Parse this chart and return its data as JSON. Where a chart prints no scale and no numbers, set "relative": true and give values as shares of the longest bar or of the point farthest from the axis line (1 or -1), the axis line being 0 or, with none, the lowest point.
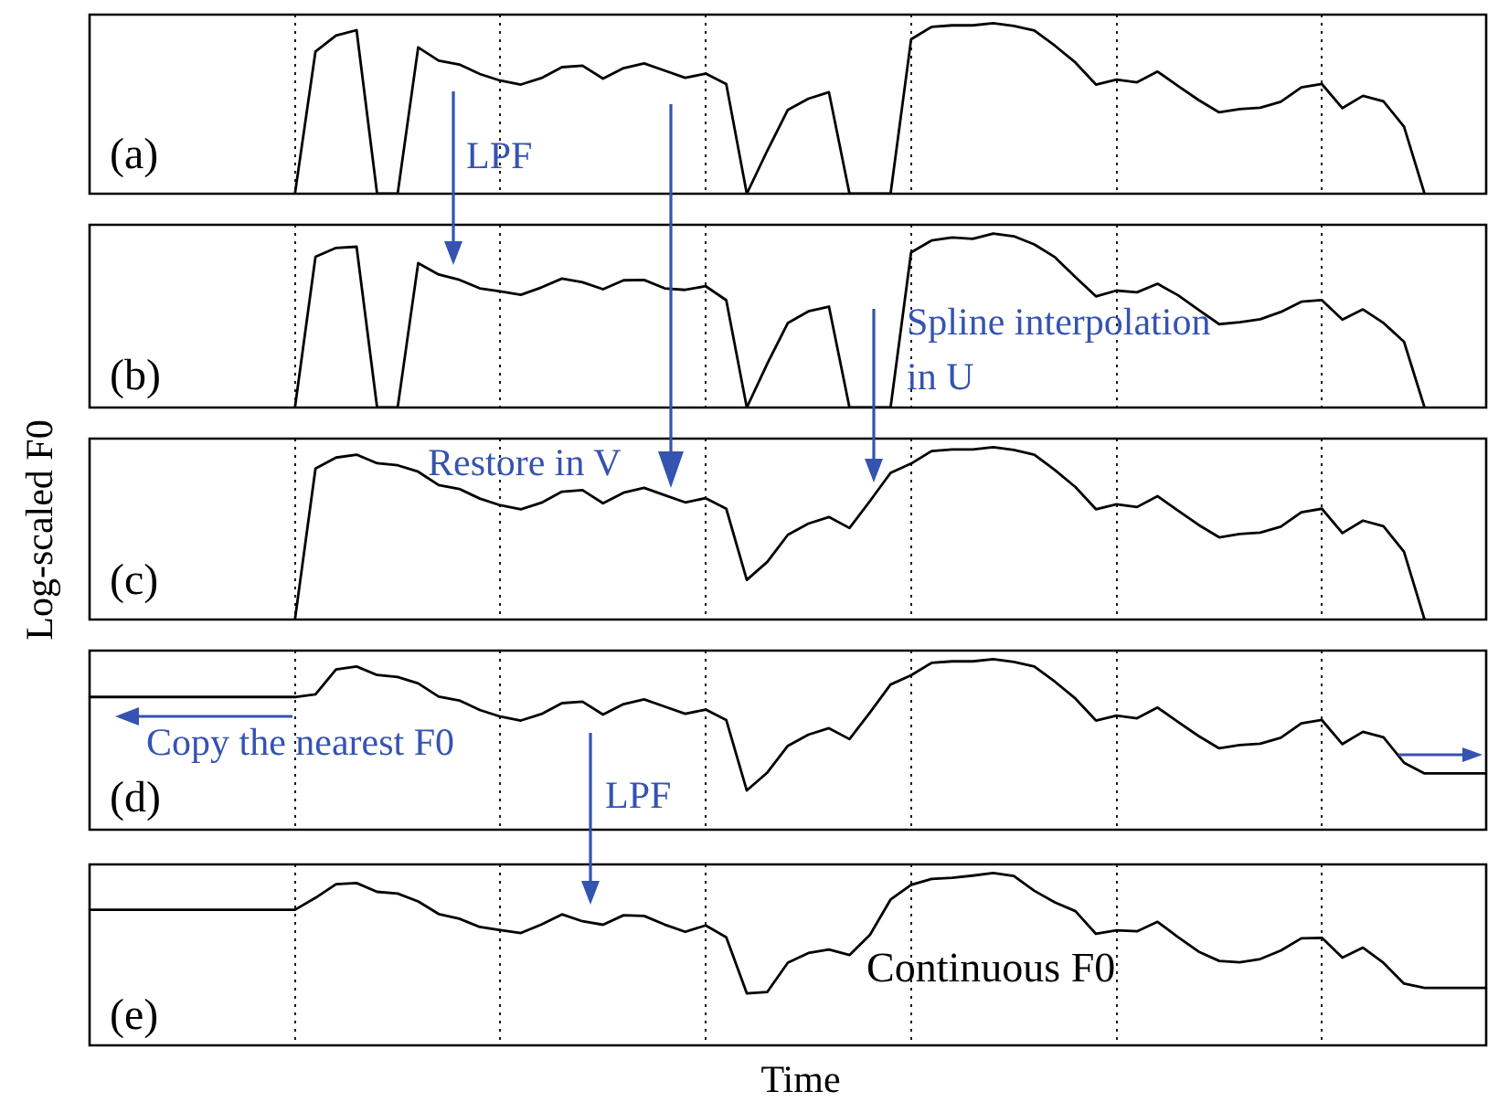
{
  "chart_data": [
    {
      "type": "line",
      "relative": true,
      "grid": "x",
      "marker": "none",
      "line_style": "solid",
      "annotations": [
        "(a)",
        "LPF"
      ],
      "categories": [
        null,
        null,
        null,
        null,
        null,
        null,
        null,
        null,
        null,
        null,
        null,
        null,
        null,
        null,
        null,
        null,
        null,
        null,
        null,
        null,
        null,
        null,
        null,
        null,
        null,
        null,
        null,
        null,
        null,
        null,
        null,
        null,
        null,
        null,
        null,
        null,
        null,
        null,
        null,
        null,
        null,
        null,
        null,
        null,
        null,
        null,
        null,
        null,
        null,
        null,
        null,
        null,
        null,
        null,
        null,
        null,
        null,
        null,
        null,
        null,
        null,
        null,
        null,
        null,
        null,
        null,
        null,
        null,
        null
      ],
      "series": [
        {
          "color": "#000000",
          "values": [
            null,
            null,
            null,
            null,
            null,
            null,
            null,
            null,
            null,
            null,
            0,
            0.834,
            0.927,
            0.959,
            0,
            0,
            0.858,
            0.78,
            0.758,
            0.702,
            0.663,
            0.64,
            0.678,
            0.742,
            0.751,
            0.675,
            0.736,
            0.764,
            0.722,
            0.68,
            0.704,
            0.643,
            0,
            0.253,
            0.492,
            0.557,
            0.595,
            0,
            0,
            0,
            0.905,
            0.978,
            0.987,
            0.987,
            1.0,
            0.984,
            0.957,
            0.868,
            0.769,
            0.64,
            0.669,
            0.653,
            0.716,
            0.632,
            0.549,
            0.477,
            0.496,
            0.504,
            0.539,
            0.623,
            0.643,
            0.502,
            0.574,
            0.542,
            0.393,
            0,
            null,
            null,
            null
          ]
        }
      ]
    },
    {
      "type": "line",
      "relative": true,
      "grid": "x",
      "marker": "none",
      "line_style": "solid",
      "annotations": [
        "(b)",
        "Spline interpolation in U"
      ],
      "categories": [
        null,
        null,
        null,
        null,
        null,
        null,
        null,
        null,
        null,
        null,
        null,
        null,
        null,
        null,
        null,
        null,
        null,
        null,
        null,
        null,
        null,
        null,
        null,
        null,
        null,
        null,
        null,
        null,
        null,
        null,
        null,
        null,
        null,
        null,
        null,
        null,
        null,
        null,
        null,
        null,
        null,
        null,
        null,
        null,
        null,
        null,
        null,
        null,
        null,
        null,
        null,
        null,
        null,
        null,
        null,
        null,
        null,
        null,
        null,
        null,
        null,
        null,
        null,
        null,
        null,
        null,
        null,
        null,
        null
      ],
      "series": [
        {
          "color": "#000000",
          "values": [
            null,
            null,
            null,
            null,
            null,
            null,
            null,
            null,
            null,
            null,
            0,
            0.866,
            0.917,
            0.924,
            0,
            0,
            0.83,
            0.764,
            0.734,
            0.685,
            0.667,
            0.648,
            0.69,
            0.741,
            0.72,
            0.68,
            0.731,
            0.733,
            0.685,
            0.676,
            0.697,
            0.617,
            0,
            0.253,
            0.486,
            0.553,
            0.58,
            0,
            0,
            0,
            0.891,
            0.96,
            0.977,
            0.969,
            1.0,
            0.984,
            0.937,
            0.864,
            0.75,
            0.639,
            0.672,
            0.662,
            0.711,
            0.645,
            0.561,
            0.479,
            0.49,
            0.507,
            0.549,
            0.608,
            0.617,
            0.505,
            0.564,
            0.486,
            0.378,
            0,
            null,
            null,
            null
          ]
        }
      ]
    },
    {
      "type": "line",
      "relative": true,
      "grid": "x",
      "marker": "none",
      "line_style": "solid",
      "ylabel": "Log-scaled F0",
      "annotations": [
        "(c)",
        "Restore in V"
      ],
      "categories": [
        null,
        null,
        null,
        null,
        null,
        null,
        null,
        null,
        null,
        null,
        null,
        null,
        null,
        null,
        null,
        null,
        null,
        null,
        null,
        null,
        null,
        null,
        null,
        null,
        null,
        null,
        null,
        null,
        null,
        null,
        null,
        null,
        null,
        null,
        null,
        null,
        null,
        null,
        null,
        null,
        null,
        null,
        null,
        null,
        null,
        null,
        null,
        null,
        null,
        null,
        null,
        null,
        null,
        null,
        null,
        null,
        null,
        null,
        null,
        null,
        null,
        null,
        null,
        null,
        null,
        null,
        null,
        null,
        null
      ],
      "series": [
        {
          "color": "#000000",
          "values": [
            null,
            null,
            null,
            null,
            null,
            null,
            null,
            null,
            null,
            null,
            0,
            0.876,
            0.94,
            0.957,
            0.907,
            0.895,
            0.858,
            0.78,
            0.758,
            0.702,
            0.663,
            0.64,
            0.678,
            0.742,
            0.751,
            0.675,
            0.736,
            0.764,
            0.722,
            0.68,
            0.704,
            0.643,
            0.23,
            0.335,
            0.492,
            0.557,
            0.595,
            0.531,
            0.688,
            0.851,
            0.905,
            0.978,
            0.987,
            0.987,
            1.0,
            0.984,
            0.957,
            0.868,
            0.769,
            0.64,
            0.669,
            0.653,
            0.716,
            0.632,
            0.549,
            0.477,
            0.496,
            0.504,
            0.539,
            0.623,
            0.643,
            0.502,
            0.574,
            0.542,
            0.393,
            0,
            null,
            null,
            null
          ]
        }
      ]
    },
    {
      "type": "line",
      "relative": true,
      "grid": "x",
      "marker": "none",
      "line_style": "solid",
      "annotations": [
        "(d)",
        "Copy the nearest F0",
        "LPF"
      ],
      "categories": [
        null,
        null,
        null,
        null,
        null,
        null,
        null,
        null,
        null,
        null,
        null,
        null,
        null,
        null,
        null,
        null,
        null,
        null,
        null,
        null,
        null,
        null,
        null,
        null,
        null,
        null,
        null,
        null,
        null,
        null,
        null,
        null,
        null,
        null,
        null,
        null,
        null,
        null,
        null,
        null,
        null,
        null,
        null,
        null,
        null,
        null,
        null,
        null,
        null,
        null,
        null,
        null,
        null,
        null,
        null,
        null,
        null,
        null,
        null,
        null,
        null,
        null,
        null,
        null,
        null,
        null,
        null,
        null,
        null
      ],
      "series": [
        {
          "color": "#000000",
          "values": [
            0.778,
            0.778,
            0.778,
            0.778,
            0.778,
            0.778,
            0.778,
            0.778,
            0.778,
            0.778,
            0.778,
            0.793,
            0.94,
            0.957,
            0.907,
            0.895,
            0.858,
            0.78,
            0.758,
            0.702,
            0.663,
            0.64,
            0.678,
            0.742,
            0.751,
            0.675,
            0.736,
            0.764,
            0.722,
            0.68,
            0.704,
            0.643,
            0.23,
            0.335,
            0.492,
            0.557,
            0.595,
            0.531,
            0.688,
            0.851,
            0.905,
            0.978,
            0.987,
            0.987,
            1.0,
            0.984,
            0.957,
            0.868,
            0.769,
            0.64,
            0.669,
            0.653,
            0.716,
            0.632,
            0.549,
            0.477,
            0.496,
            0.504,
            0.539,
            0.623,
            0.643,
            0.502,
            0.574,
            0.542,
            0.393,
            0.33,
            0.33,
            0.33,
            0.33
          ]
        }
      ]
    },
    {
      "type": "line",
      "relative": true,
      "grid": "x",
      "marker": "none",
      "line_style": "solid",
      "xlabel": "Time",
      "annotations": [
        "(e)",
        "Continuous F0"
      ],
      "categories": [
        null,
        null,
        null,
        null,
        null,
        null,
        null,
        null,
        null,
        null,
        null,
        null,
        null,
        null,
        null,
        null,
        null,
        null,
        null,
        null,
        null,
        null,
        null,
        null,
        null,
        null,
        null,
        null,
        null,
        null,
        null,
        null,
        null,
        null,
        null,
        null,
        null,
        null,
        null,
        null,
        null,
        null,
        null,
        null,
        null,
        null,
        null,
        null,
        null,
        null,
        null,
        null,
        null,
        null,
        null,
        null,
        null,
        null,
        null,
        null,
        null,
        null,
        null,
        null,
        null,
        null,
        null,
        null,
        null
      ],
      "series": [
        {
          "color": "#000000",
          "values": [
            0.787,
            0.787,
            0.787,
            0.787,
            0.787,
            0.787,
            0.787,
            0.787,
            0.787,
            0.787,
            0.787,
            0.856,
            0.935,
            0.942,
            0.891,
            0.881,
            0.835,
            0.762,
            0.735,
            0.687,
            0.669,
            0.652,
            0.701,
            0.76,
            0.72,
            0.7,
            0.755,
            0.751,
            0.701,
            0.659,
            0.696,
            0.627,
            0.302,
            0.31,
            0.48,
            0.536,
            0.556,
            0.524,
            0.642,
            0.846,
            0.931,
            0.966,
            0.972,
            0.985,
            1.0,
            0.983,
            0.897,
            0.83,
            0.779,
            0.647,
            0.668,
            0.662,
            0.717,
            0.628,
            0.544,
            0.49,
            0.482,
            0.501,
            0.55,
            0.621,
            0.624,
            0.509,
            0.567,
            0.479,
            0.358,
            0.333,
            0.333,
            0.333,
            0.333
          ]
        }
      ]
    }
  ]
}
